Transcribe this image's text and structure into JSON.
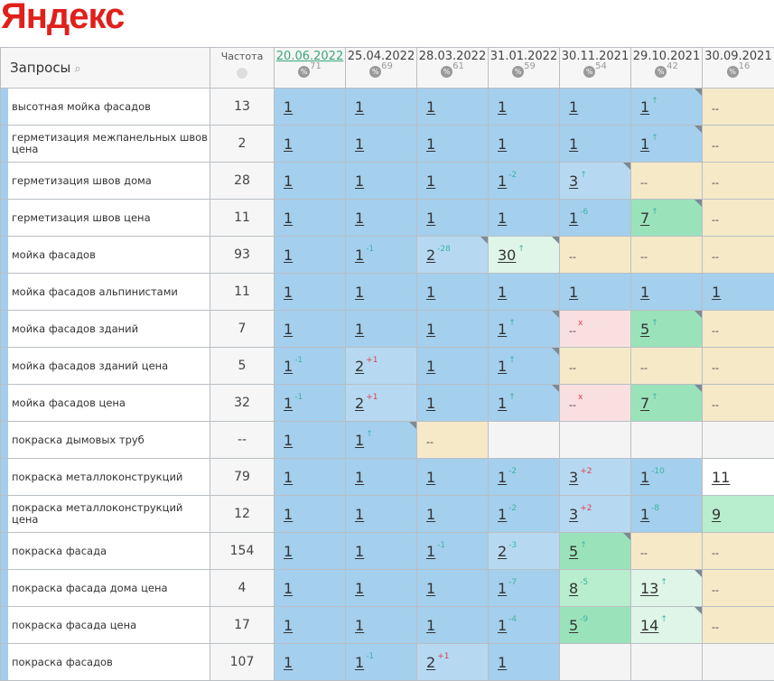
{
  "logo": "Яндекс",
  "header": {
    "queries_label": "Запросы",
    "search_icon": "search-icon",
    "frequency_label": "Частота",
    "region_icon": "globe-icon",
    "percent_icon": "percent-icon",
    "dates": [
      {
        "date": "20.06.2022",
        "pct": "71",
        "active": true
      },
      {
        "date": "25.04.2022",
        "pct": "69"
      },
      {
        "date": "28.03.2022",
        "pct": "61"
      },
      {
        "date": "31.01.2022",
        "pct": "59"
      },
      {
        "date": "30.11.2021",
        "pct": "54"
      },
      {
        "date": "29.10.2021",
        "pct": "42"
      },
      {
        "date": "30.09.2021",
        "pct": "16"
      }
    ]
  },
  "colors": {
    "b": "#a4cfed",
    "lb": "#b6d9f1",
    "y": "#f5e9c8",
    "p": "#fadfe0",
    "g": "#9ae3ba",
    "lg": "#b8edcd",
    "vg": "#def5e8",
    "w": "#ffffff",
    "e": "#f4f4f4"
  },
  "rows": [
    {
      "q": "высотная мойка фасадов",
      "f": "13",
      "c": [
        [
          "1",
          "",
          "",
          "b"
        ],
        [
          "1",
          "",
          "",
          "b"
        ],
        [
          "1",
          "",
          "",
          "b"
        ],
        [
          "1",
          "",
          "",
          "b"
        ],
        [
          "1",
          "",
          "",
          "b"
        ],
        [
          "1",
          "↑",
          "g",
          "b",
          1
        ],
        [
          "--",
          "",
          "",
          "y"
        ]
      ]
    },
    {
      "q": "герметизация межпанельных швов цена",
      "f": "2",
      "c": [
        [
          "1",
          "",
          "",
          "b"
        ],
        [
          "1",
          "",
          "",
          "b"
        ],
        [
          "1",
          "",
          "",
          "b"
        ],
        [
          "1",
          "",
          "",
          "b"
        ],
        [
          "1",
          "",
          "",
          "b"
        ],
        [
          "1",
          "↑",
          "g",
          "b",
          1
        ],
        [
          "--",
          "",
          "",
          "y"
        ]
      ]
    },
    {
      "q": "герметизация швов дома",
      "f": "28",
      "c": [
        [
          "1",
          "",
          "",
          "b"
        ],
        [
          "1",
          "",
          "",
          "b"
        ],
        [
          "1",
          "",
          "",
          "b"
        ],
        [
          "1",
          "-2",
          "g",
          "b"
        ],
        [
          "3",
          "↑",
          "g",
          "lb",
          1
        ],
        [
          "--",
          "",
          "",
          "y"
        ],
        [
          "--",
          "",
          "",
          "y"
        ]
      ]
    },
    {
      "q": "герметизация швов цена",
      "f": "11",
      "c": [
        [
          "1",
          "",
          "",
          "b"
        ],
        [
          "1",
          "",
          "",
          "b"
        ],
        [
          "1",
          "",
          "",
          "b"
        ],
        [
          "1",
          "",
          "",
          "b"
        ],
        [
          "1",
          "-6",
          "g",
          "b"
        ],
        [
          "7",
          "↑",
          "g",
          "g",
          1
        ],
        [
          "--",
          "",
          "",
          "y"
        ]
      ]
    },
    {
      "q": "мойка фасадов",
      "f": "93",
      "c": [
        [
          "1",
          "",
          "",
          "b"
        ],
        [
          "1",
          "-1",
          "g",
          "b"
        ],
        [
          "2",
          "-28",
          "g",
          "lb",
          1
        ],
        [
          "30",
          "↑",
          "g",
          "vg",
          1
        ],
        [
          "--",
          "",
          "",
          "y"
        ],
        [
          "--",
          "",
          "",
          "y"
        ],
        [
          "--",
          "",
          "",
          "y"
        ]
      ]
    },
    {
      "q": "мойка фасадов альпинистами",
      "f": "11",
      "c": [
        [
          "1",
          "",
          "",
          "b"
        ],
        [
          "1",
          "",
          "",
          "b"
        ],
        [
          "1",
          "",
          "",
          "b"
        ],
        [
          "1",
          "",
          "",
          "b"
        ],
        [
          "1",
          "",
          "",
          "b"
        ],
        [
          "1",
          "",
          "",
          "b"
        ],
        [
          "1",
          "",
          "",
          "b"
        ]
      ]
    },
    {
      "q": "мойка фасадов зданий",
      "f": "7",
      "c": [
        [
          "1",
          "",
          "",
          "b"
        ],
        [
          "1",
          "",
          "",
          "b"
        ],
        [
          "1",
          "",
          "",
          "b"
        ],
        [
          "1",
          "↑",
          "g",
          "b",
          1
        ],
        [
          "--",
          "x",
          "r",
          "p"
        ],
        [
          "5",
          "↑",
          "g",
          "g",
          1
        ],
        [
          "--",
          "",
          "",
          "y"
        ]
      ]
    },
    {
      "q": "мойка фасадов зданий цена",
      "f": "5",
      "c": [
        [
          "1",
          "-1",
          "g",
          "b"
        ],
        [
          "2",
          "+1",
          "r",
          "lb"
        ],
        [
          "1",
          "",
          "",
          "b"
        ],
        [
          "1",
          "↑",
          "g",
          "b",
          1
        ],
        [
          "--",
          "",
          "",
          "y"
        ],
        [
          "--",
          "",
          "",
          "y"
        ],
        [
          "--",
          "",
          "",
          "y"
        ]
      ]
    },
    {
      "q": "мойка фасадов цена",
      "f": "32",
      "c": [
        [
          "1",
          "-1",
          "g",
          "b"
        ],
        [
          "2",
          "+1",
          "r",
          "lb"
        ],
        [
          "1",
          "",
          "",
          "b"
        ],
        [
          "1",
          "↑",
          "g",
          "b",
          1
        ],
        [
          "--",
          "x",
          "r",
          "p"
        ],
        [
          "7",
          "↑",
          "g",
          "g",
          1
        ],
        [
          "--",
          "",
          "",
          "y"
        ]
      ]
    },
    {
      "q": "покраска дымовых труб",
      "f": "--",
      "c": [
        [
          "1",
          "",
          "",
          "b"
        ],
        [
          "1",
          "↑",
          "g",
          "b",
          1
        ],
        [
          "--",
          "",
          "",
          "y"
        ],
        [
          "",
          "",
          "",
          "e"
        ],
        [
          "",
          "",
          "",
          "e"
        ],
        [
          "",
          "",
          "",
          "e"
        ],
        [
          "",
          "",
          "",
          "e"
        ]
      ]
    },
    {
      "q": "покраска металлоконструкций",
      "f": "79",
      "c": [
        [
          "1",
          "",
          "",
          "b"
        ],
        [
          "1",
          "",
          "",
          "b"
        ],
        [
          "1",
          "",
          "",
          "b"
        ],
        [
          "1",
          "-2",
          "g",
          "b"
        ],
        [
          "3",
          "+2",
          "r",
          "lb"
        ],
        [
          "1",
          "-10",
          "g",
          "b"
        ],
        [
          "11",
          "",
          "",
          "w"
        ]
      ]
    },
    {
      "q": "покраска металлоконструкций цена",
      "f": "12",
      "c": [
        [
          "1",
          "",
          "",
          "b"
        ],
        [
          "1",
          "",
          "",
          "b"
        ],
        [
          "1",
          "",
          "",
          "b"
        ],
        [
          "1",
          "-2",
          "g",
          "b"
        ],
        [
          "3",
          "+2",
          "r",
          "lb"
        ],
        [
          "1",
          "-8",
          "g",
          "b"
        ],
        [
          "9",
          "",
          "",
          "lg"
        ]
      ]
    },
    {
      "q": "покраска фасада",
      "f": "154",
      "c": [
        [
          "1",
          "",
          "",
          "b"
        ],
        [
          "1",
          "",
          "",
          "b"
        ],
        [
          "1",
          "-1",
          "g",
          "b"
        ],
        [
          "2",
          "-3",
          "g",
          "lb"
        ],
        [
          "5",
          "↑",
          "g",
          "g",
          1
        ],
        [
          "--",
          "",
          "",
          "y"
        ],
        [
          "--",
          "",
          "",
          "y"
        ]
      ]
    },
    {
      "q": "покраска фасада дома цена",
      "f": "4",
      "c": [
        [
          "1",
          "",
          "",
          "b"
        ],
        [
          "1",
          "",
          "",
          "b"
        ],
        [
          "1",
          "",
          "",
          "b"
        ],
        [
          "1",
          "-7",
          "g",
          "b"
        ],
        [
          "8",
          "-5",
          "g",
          "lg"
        ],
        [
          "13",
          "↑",
          "g",
          "vg",
          1
        ],
        [
          "--",
          "",
          "",
          "y"
        ]
      ]
    },
    {
      "q": "покраска фасада цена",
      "f": "17",
      "c": [
        [
          "1",
          "",
          "",
          "b"
        ],
        [
          "1",
          "",
          "",
          "b"
        ],
        [
          "1",
          "",
          "",
          "b"
        ],
        [
          "1",
          "-4",
          "g",
          "b"
        ],
        [
          "5",
          "-9",
          "g",
          "g"
        ],
        [
          "14",
          "↑",
          "g",
          "vg",
          1
        ],
        [
          "--",
          "",
          "",
          "y"
        ]
      ]
    },
    {
      "q": "покраска фасадов",
      "f": "107",
      "c": [
        [
          "1",
          "",
          "",
          "b"
        ],
        [
          "1",
          "-1",
          "g",
          "b"
        ],
        [
          "2",
          "+1",
          "r",
          "lb"
        ],
        [
          "1",
          "",
          "",
          "b"
        ],
        [
          "",
          "",
          "",
          "e"
        ],
        [
          "",
          "",
          "",
          "e"
        ],
        [
          "",
          "",
          "",
          "e"
        ]
      ]
    }
  ]
}
